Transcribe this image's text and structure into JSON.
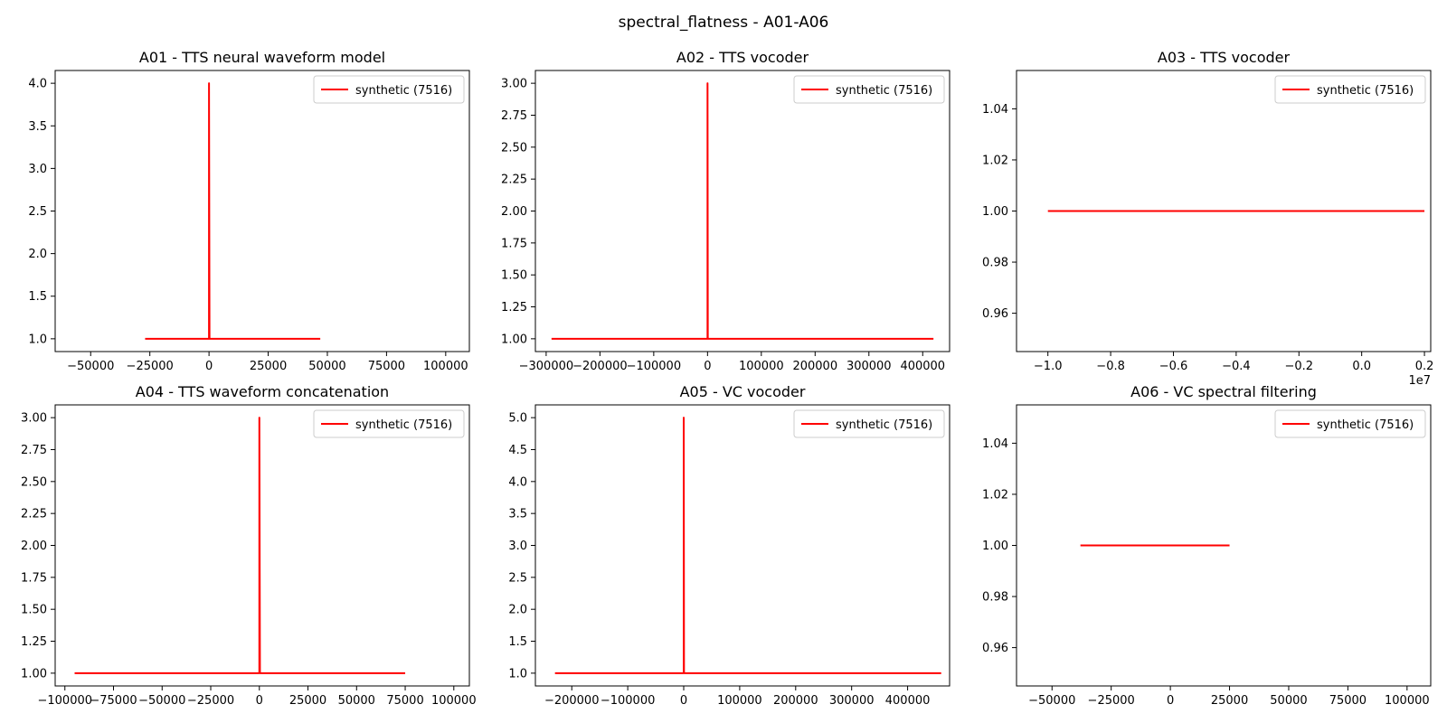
{
  "figure": {
    "suptitle": "spectral_flatness - A01-A06",
    "line_color": "#ff0000",
    "axes_color": "#000000"
  },
  "chart_data": [
    {
      "type": "line",
      "title": "A01 - TTS neural waveform model",
      "xlim": [
        -65000,
        110000
      ],
      "ylim": [
        0.85,
        4.15
      ],
      "xticks": [
        -50000,
        -25000,
        0,
        25000,
        50000,
        75000,
        100000
      ],
      "xtick_labels": [
        "−50000",
        "−25000",
        "0",
        "25000",
        "50000",
        "75000",
        "100000"
      ],
      "yticks": [
        1.0,
        1.5,
        2.0,
        2.5,
        3.0,
        3.5,
        4.0
      ],
      "ytick_labels": [
        "1.0",
        "1.5",
        "2.0",
        "2.5",
        "3.0",
        "3.5",
        "4.0"
      ],
      "offset_label": "",
      "legend": "upper right",
      "series": [
        {
          "name": "synthetic (7516)",
          "color": "#ff0000",
          "x": [
            -27000,
            -200,
            0,
            0,
            200,
            47000
          ],
          "y": [
            1,
            1,
            1,
            4,
            1,
            1
          ]
        }
      ]
    },
    {
      "type": "line",
      "title": "A02 - TTS vocoder",
      "xlim": [
        -320000,
        450000
      ],
      "ylim": [
        0.9,
        3.1
      ],
      "xticks": [
        -300000,
        -200000,
        -100000,
        0,
        100000,
        200000,
        300000,
        400000
      ],
      "xtick_labels": [
        "−300000",
        "−200000",
        "−100000",
        "0",
        "100000",
        "200000",
        "300000",
        "400000"
      ],
      "yticks": [
        1.0,
        1.25,
        1.5,
        1.75,
        2.0,
        2.25,
        2.5,
        2.75,
        3.0
      ],
      "ytick_labels": [
        "1.00",
        "1.25",
        "1.50",
        "1.75",
        "2.00",
        "2.25",
        "2.50",
        "2.75",
        "3.00"
      ],
      "offset_label": "",
      "legend": "upper right",
      "series": [
        {
          "name": "synthetic (7516)",
          "color": "#ff0000",
          "x": [
            -290000,
            -500,
            0,
            0,
            500,
            420000
          ],
          "y": [
            1,
            1,
            1,
            3,
            1,
            1
          ]
        }
      ]
    },
    {
      "type": "line",
      "title": "A03 - TTS vocoder",
      "xlim": [
        -1.1,
        0.22
      ],
      "ylim": [
        0.945,
        1.055
      ],
      "xticks": [
        -1.0,
        -0.8,
        -0.6,
        -0.4,
        -0.2,
        0.0,
        0.2
      ],
      "xtick_labels": [
        "−1.0",
        "−0.8",
        "−0.6",
        "−0.4",
        "−0.2",
        "0.0",
        "0.2"
      ],
      "yticks": [
        0.96,
        0.98,
        1.0,
        1.02,
        1.04
      ],
      "ytick_labels": [
        "0.96",
        "0.98",
        "1.00",
        "1.02",
        "1.04"
      ],
      "offset_label": "1e7",
      "legend": "upper right",
      "series": [
        {
          "name": "synthetic (7516)",
          "color": "#ff0000",
          "x": [
            -1.0,
            0.2
          ],
          "y": [
            1,
            1
          ]
        }
      ]
    },
    {
      "type": "line",
      "title": "A04 - TTS waveform concatenation",
      "xlim": [
        -105000,
        108000
      ],
      "ylim": [
        0.9,
        3.1
      ],
      "xticks": [
        -100000,
        -75000,
        -50000,
        -25000,
        0,
        25000,
        50000,
        75000,
        100000
      ],
      "xtick_labels": [
        "−100000",
        "−75000",
        "−50000",
        "−25000",
        "0",
        "25000",
        "50000",
        "75000",
        "100000"
      ],
      "yticks": [
        1.0,
        1.25,
        1.5,
        1.75,
        2.0,
        2.25,
        2.5,
        2.75,
        3.0
      ],
      "ytick_labels": [
        "1.00",
        "1.25",
        "1.50",
        "1.75",
        "2.00",
        "2.25",
        "2.50",
        "2.75",
        "3.00"
      ],
      "offset_label": "",
      "legend": "upper right",
      "series": [
        {
          "name": "synthetic (7516)",
          "color": "#ff0000",
          "x": [
            -95000,
            -300,
            0,
            0,
            300,
            75000
          ],
          "y": [
            1,
            1,
            1,
            3,
            1,
            1
          ]
        }
      ]
    },
    {
      "type": "line",
      "title": "A05 - VC vocoder",
      "xlim": [
        -265000,
        475000
      ],
      "ylim": [
        0.8,
        5.2
      ],
      "xticks": [
        -200000,
        -100000,
        0,
        100000,
        200000,
        300000,
        400000
      ],
      "xtick_labels": [
        "−200000",
        "−100000",
        "0",
        "100000",
        "200000",
        "300000",
        "400000"
      ],
      "yticks": [
        1.0,
        1.5,
        2.0,
        2.5,
        3.0,
        3.5,
        4.0,
        4.5,
        5.0
      ],
      "ytick_labels": [
        "1.0",
        "1.5",
        "2.0",
        "2.5",
        "3.0",
        "3.5",
        "4.0",
        "4.5",
        "5.0"
      ],
      "offset_label": "",
      "legend": "upper right",
      "series": [
        {
          "name": "synthetic (7516)",
          "color": "#ff0000",
          "x": [
            -230000,
            -500,
            0,
            0,
            500,
            460000
          ],
          "y": [
            1,
            1,
            1,
            5,
            1,
            1
          ]
        }
      ]
    },
    {
      "type": "line",
      "title": "A06 - VC spectral filtering",
      "xlim": [
        -65000,
        110000
      ],
      "ylim": [
        0.945,
        1.055
      ],
      "xticks": [
        -50000,
        -25000,
        0,
        25000,
        50000,
        75000,
        100000
      ],
      "xtick_labels": [
        "−50000",
        "−25000",
        "0",
        "25000",
        "50000",
        "75000",
        "100000"
      ],
      "yticks": [
        0.96,
        0.98,
        1.0,
        1.02,
        1.04
      ],
      "ytick_labels": [
        "0.96",
        "0.98",
        "1.00",
        "1.02",
        "1.04"
      ],
      "offset_label": "",
      "legend": "upper right",
      "series": [
        {
          "name": "synthetic (7516)",
          "color": "#ff0000",
          "x": [
            -38000,
            25000
          ],
          "y": [
            1,
            1
          ]
        }
      ]
    }
  ]
}
